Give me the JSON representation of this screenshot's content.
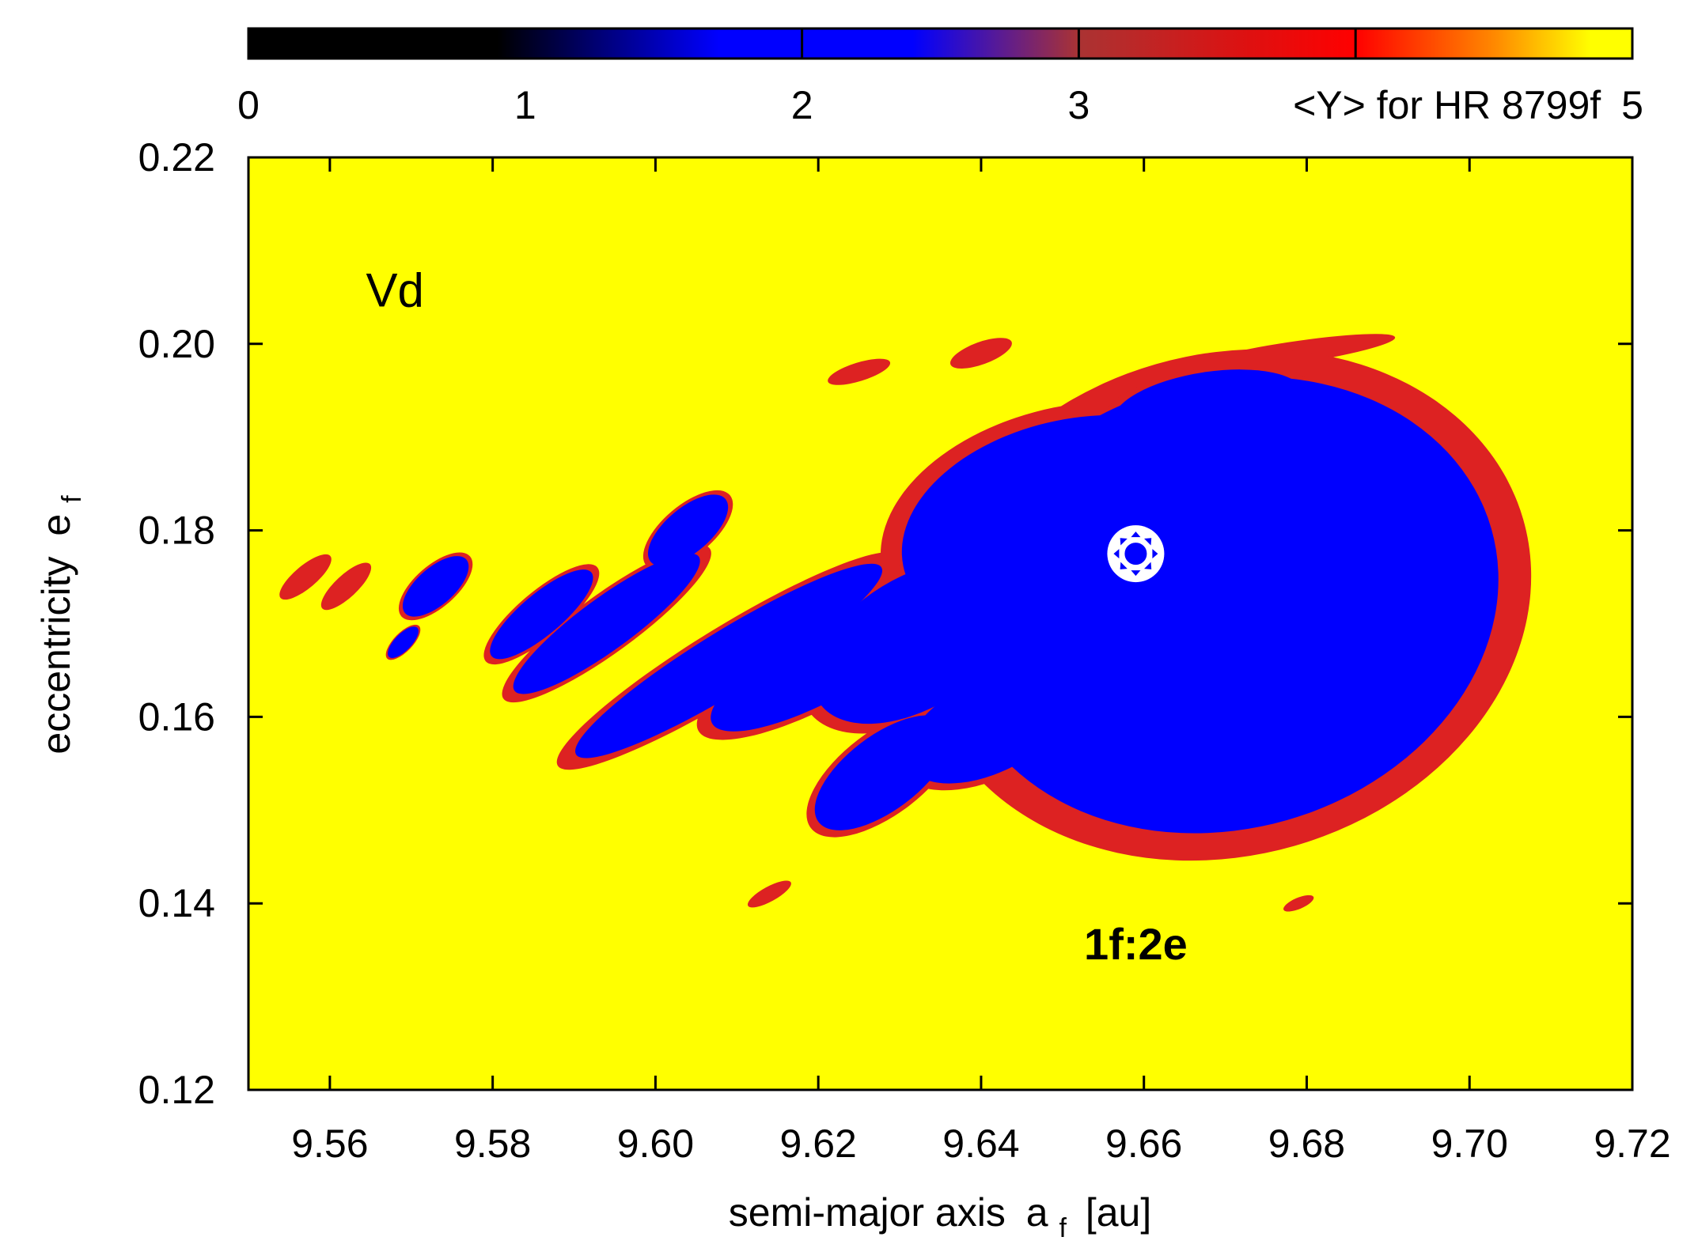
{
  "chart_data": {
    "type": "heatmap",
    "title": "",
    "xlabel": "semi-major axis",
    "xlabel_symbol": "a",
    "xlabel_subscript": "f",
    "xlabel_unit": "[au]",
    "ylabel": "eccentricity",
    "ylabel_symbol": "e",
    "ylabel_subscript": "f",
    "xlim": [
      9.55,
      9.72
    ],
    "ylim": [
      0.12,
      0.22
    ],
    "xticks": [
      9.56,
      9.58,
      9.6,
      9.62,
      9.64,
      9.66,
      9.68,
      9.7,
      9.72
    ],
    "xtick_labels": [
      "9.56",
      "9.58",
      "9.60",
      "9.62",
      "9.64",
      "9.66",
      "9.68",
      "9.70",
      "9.72"
    ],
    "yticks": [
      0.12,
      0.14,
      0.16,
      0.18,
      0.2,
      0.22
    ],
    "ytick_labels": [
      "0.12",
      "0.14",
      "0.16",
      "0.18",
      "0.20",
      "0.22"
    ],
    "colorbar": {
      "label": "<Y> for HR 8799f",
      "range": [
        0,
        5
      ],
      "ticks": [
        0,
        1,
        2,
        3,
        5
      ],
      "tick_labels": [
        "0",
        "1",
        "2",
        "3",
        "5"
      ],
      "major_divisions": [
        2,
        3,
        4
      ],
      "stops": [
        {
          "value": 0,
          "color": "#000000"
        },
        {
          "value": 0.9,
          "color": "#000000"
        },
        {
          "value": 1.7,
          "color": "#0000ff"
        },
        {
          "value": 2.4,
          "color": "#0000ff"
        },
        {
          "value": 3.0,
          "color": "#aa3333"
        },
        {
          "value": 3.6,
          "color": "#dd1111"
        },
        {
          "value": 4.0,
          "color": "#ff0000"
        },
        {
          "value": 4.5,
          "color": "#ff8800"
        },
        {
          "value": 4.85,
          "color": "#ffff00"
        },
        {
          "value": 5,
          "color": "#ffff00"
        }
      ]
    },
    "background_value": 5,
    "background_color": "#ffff00",
    "stable_color": "#0000ff",
    "edge_color": "#dd2222",
    "stable_regions": [
      {
        "a": 9.67,
        "e": 0.172,
        "ra": 0.034,
        "re": 0.024,
        "tilt": -0.28
      },
      {
        "a": 9.652,
        "e": 0.18,
        "ra": 0.022,
        "re": 0.012,
        "tilt": -0.2
      },
      {
        "a": 9.668,
        "e": 0.193,
        "ra": 0.012,
        "re": 0.004,
        "tilt": -0.15
      },
      {
        "a": 9.641,
        "e": 0.159,
        "ra": 0.011,
        "re": 0.005,
        "tilt": -0.45
      },
      {
        "a": 9.632,
        "e": 0.168,
        "ra": 0.014,
        "re": 0.007,
        "tilt": -0.55
      },
      {
        "a": 9.621,
        "e": 0.166,
        "ra": 0.016,
        "re": 0.004,
        "tilt": -0.5
      },
      {
        "a": 9.628,
        "e": 0.154,
        "ra": 0.01,
        "re": 0.004,
        "tilt": -0.65
      },
      {
        "a": 9.609,
        "e": 0.166,
        "ra": 0.022,
        "re": 0.0033,
        "tilt": -0.55
      },
      {
        "a": 9.594,
        "e": 0.17,
        "ra": 0.014,
        "re": 0.0028,
        "tilt": -0.63
      },
      {
        "a": 9.604,
        "e": 0.18,
        "ra": 0.006,
        "re": 0.0024,
        "tilt": -0.7
      },
      {
        "a": 9.586,
        "e": 0.171,
        "ra": 0.008,
        "re": 0.0022,
        "tilt": -0.7
      },
      {
        "a": 9.573,
        "e": 0.174,
        "ra": 0.005,
        "re": 0.002,
        "tilt": -0.72
      },
      {
        "a": 9.569,
        "e": 0.168,
        "ra": 0.0025,
        "re": 0.0009,
        "tilt": -0.8
      }
    ],
    "unstable_fringes": [
      {
        "a": 9.678,
        "e": 0.199,
        "ra": 0.013,
        "re": 0.0012,
        "tilt": -0.15
      },
      {
        "a": 9.64,
        "e": 0.199,
        "ra": 0.004,
        "re": 0.0012,
        "tilt": -0.35
      },
      {
        "a": 9.625,
        "e": 0.197,
        "ra": 0.004,
        "re": 0.001,
        "tilt": -0.3
      },
      {
        "a": 9.557,
        "e": 0.175,
        "ra": 0.004,
        "re": 0.0012,
        "tilt": -0.7
      },
      {
        "a": 9.562,
        "e": 0.174,
        "ra": 0.004,
        "re": 0.0012,
        "tilt": -0.75
      },
      {
        "a": 9.614,
        "e": 0.141,
        "ra": 0.003,
        "re": 0.0008,
        "tilt": -0.5
      },
      {
        "a": 9.679,
        "e": 0.14,
        "ra": 0.002,
        "re": 0.0006,
        "tilt": -0.4
      }
    ],
    "marker": {
      "a": 9.659,
      "e": 0.1775,
      "symbol": "sun"
    },
    "annotations": [
      {
        "text": "Vd",
        "a": 9.568,
        "e": 0.204,
        "bold": false
      },
      {
        "text": "1f:2e",
        "a": 9.659,
        "e": 0.134,
        "bold": true
      }
    ]
  }
}
